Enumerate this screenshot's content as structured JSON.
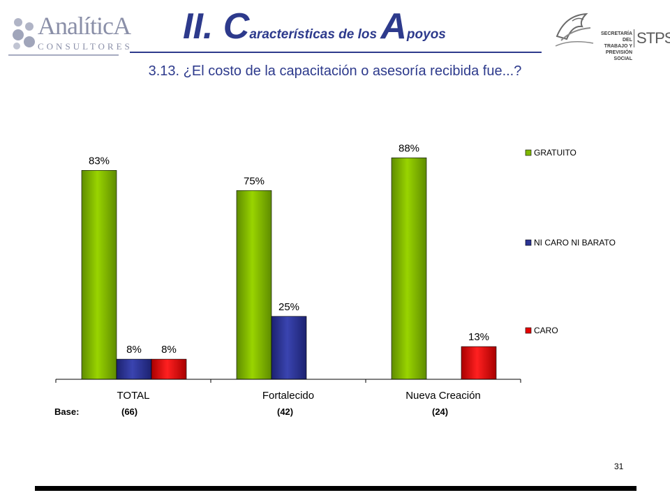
{
  "header": {
    "logo_left": {
      "name": "AnalíticA",
      "subtitle": "CONSULTORES"
    },
    "title": {
      "part1": "II. ",
      "big_c": "C",
      "mid": "aracterísticas de los ",
      "big_a": "A",
      "end": "poyos"
    },
    "logo_right": {
      "line1": "SECRETARÍA DEL",
      "line2": "TRABAJO Y",
      "line3": "PREVISIÓN SOCIAL",
      "acronym": "STPS"
    }
  },
  "question": "3.13. ¿El costo de la capacitación o asesoría recibida fue...?",
  "chart_data": {
    "type": "bar",
    "categories": [
      "TOTAL",
      "Fortalecido",
      "Nueva Creación"
    ],
    "series": [
      {
        "name": "GRATUITO",
        "color": "#7fb800",
        "values": [
          83,
          75,
          88
        ],
        "labels": [
          "83%",
          "75%",
          "88%"
        ]
      },
      {
        "name": "NI CARO NI BARATO",
        "color": "#2b3494",
        "values": [
          8,
          25,
          null
        ],
        "labels": [
          "8%",
          "25%",
          ""
        ]
      },
      {
        "name": "CARO",
        "color": "#e60000",
        "values": [
          8,
          null,
          13
        ],
        "labels": [
          "8%",
          "",
          "13%"
        ]
      }
    ],
    "ylim": [
      0,
      100
    ],
    "grid": false,
    "legend": "right"
  },
  "base": {
    "label": "Base:",
    "values": [
      "(66)",
      "(42)",
      "(24)"
    ]
  },
  "page_number": "31"
}
